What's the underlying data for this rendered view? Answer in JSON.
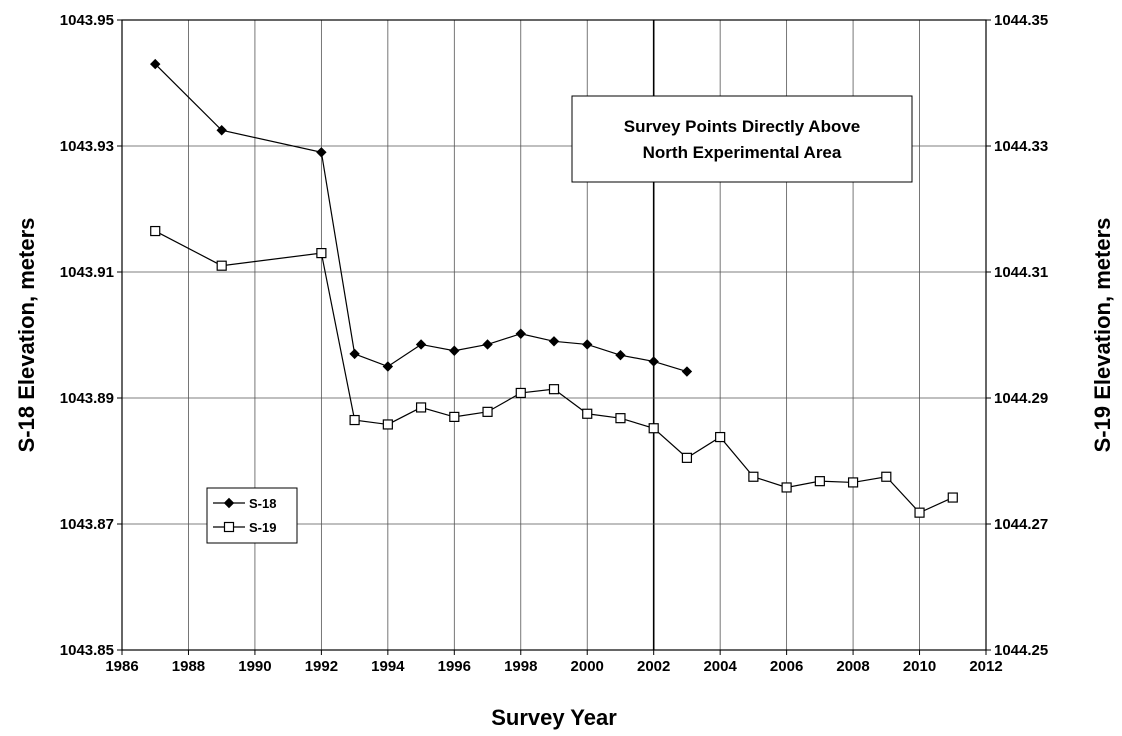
{
  "chart_data": {
    "type": "line",
    "xlabel": "Survey Year",
    "ylabel_left": "S-18 Elevation, meters",
    "ylabel_right": "S-19 Elevation, meters",
    "xlim": [
      1986,
      2012
    ],
    "x_ticks": [
      "1986",
      "1988",
      "1990",
      "1992",
      "1994",
      "1996",
      "1998",
      "2000",
      "2002",
      "2004",
      "2006",
      "2008",
      "2010",
      "2012"
    ],
    "ylim_left": [
      1043.85,
      1043.95
    ],
    "y_ticks_left": [
      "1043.85",
      "1043.87",
      "1043.89",
      "1043.91",
      "1043.93",
      "1043.95"
    ],
    "ylim_right": [
      1044.25,
      1044.35
    ],
    "y_ticks_right": [
      "1044.25",
      "1044.27",
      "1044.29",
      "1044.31",
      "1044.33",
      "1044.35"
    ],
    "grid": true,
    "legend_position": "lower-left",
    "annotation": [
      "Survey Points Directly Above",
      "North Experimental Area"
    ],
    "series": [
      {
        "name": "S-18",
        "axis": "left",
        "marker": "diamond-filled",
        "x": [
          1987,
          1989,
          1992,
          1993,
          1994,
          1995,
          1996,
          1997,
          1998,
          1999,
          2000,
          2001,
          2002,
          2003
        ],
        "y": [
          1043.943,
          1043.9325,
          1043.929,
          1043.897,
          1043.895,
          1043.8985,
          1043.8975,
          1043.8985,
          1043.9002,
          1043.899,
          1043.8985,
          1043.8968,
          1043.8958,
          1043.8942
        ]
      },
      {
        "name": "S-19",
        "axis": "right",
        "marker": "square-open",
        "x": [
          1987,
          1989,
          1992,
          1993,
          1994,
          1995,
          1996,
          1997,
          1998,
          1999,
          2000,
          2001,
          2002,
          2003,
          2004,
          2005,
          2006,
          2007,
          2008,
          2009,
          2010,
          2011
        ],
        "y": [
          1044.3165,
          1044.311,
          1044.313,
          1044.2865,
          1044.2858,
          1044.2885,
          1044.287,
          1044.2878,
          1044.2908,
          1044.2914,
          1044.2875,
          1044.2868,
          1044.2852,
          1044.2805,
          1044.2838,
          1044.2775,
          1044.2758,
          1044.2768,
          1044.2766,
          1044.2775,
          1044.2718,
          1044.2742
        ]
      }
    ]
  }
}
